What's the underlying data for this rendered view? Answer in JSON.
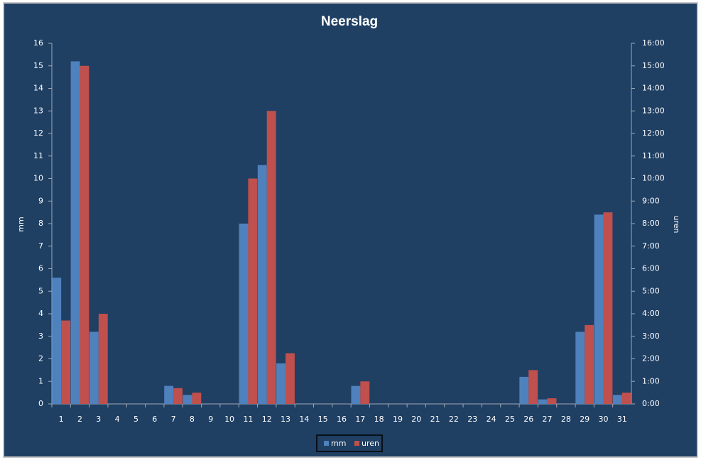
{
  "chart_data": {
    "type": "bar",
    "title": "Neerslag",
    "y_label": "mm",
    "y2_label": "uren",
    "categories": [
      "1",
      "2",
      "3",
      "4",
      "5",
      "6",
      "7",
      "8",
      "9",
      "10",
      "11",
      "12",
      "13",
      "14",
      "15",
      "16",
      "17",
      "18",
      "19",
      "20",
      "21",
      "22",
      "23",
      "24",
      "25",
      "26",
      "27",
      "28",
      "29",
      "30",
      "31"
    ],
    "series": [
      {
        "name": "mm",
        "color": "#4f81bd",
        "values": [
          5.6,
          15.2,
          3.2,
          0,
          0,
          0,
          0.8,
          0.4,
          0,
          0,
          8.0,
          10.6,
          1.8,
          0,
          0,
          0,
          0.8,
          0,
          0,
          0,
          0,
          0,
          0,
          0,
          0,
          1.2,
          0.2,
          0,
          3.2,
          8.4,
          0.4
        ]
      },
      {
        "name": "uren",
        "color": "#c0504d",
        "axis": "y2",
        "values": [
          3.7,
          15.0,
          4.0,
          0,
          0,
          0,
          0.7,
          0.5,
          0,
          0,
          10.0,
          13.0,
          2.25,
          0,
          0,
          0,
          1.0,
          0,
          0,
          0,
          0,
          0,
          0,
          0,
          0,
          1.5,
          0.25,
          0,
          3.5,
          8.5,
          0.5
        ]
      }
    ],
    "ylim": [
      0,
      16
    ],
    "yticks": [
      0,
      1,
      2,
      3,
      4,
      5,
      6,
      7,
      8,
      9,
      10,
      11,
      12,
      13,
      14,
      15,
      16
    ],
    "y2lim": [
      0,
      16
    ],
    "y2ticks": [
      {
        "value": 0,
        "label": "0:00"
      },
      {
        "value": 1,
        "label": "1:00"
      },
      {
        "value": 2,
        "label": "2:00"
      },
      {
        "value": 3,
        "label": "3:00"
      },
      {
        "value": 4,
        "label": "4:00"
      },
      {
        "value": 5,
        "label": "5:00"
      },
      {
        "value": 6,
        "label": "6:00"
      },
      {
        "value": 7,
        "label": "7:00"
      },
      {
        "value": 8,
        "label": "8:00"
      },
      {
        "value": 9,
        "label": "9:00"
      },
      {
        "value": 10,
        "label": "10:00"
      },
      {
        "value": 11,
        "label": "11:00"
      },
      {
        "value": 12,
        "label": "12:00"
      },
      {
        "value": 13,
        "label": "13:00"
      },
      {
        "value": 14,
        "label": "14:00"
      },
      {
        "value": 15,
        "label": "15:00"
      },
      {
        "value": 16,
        "label": "16:00"
      }
    ],
    "grid": false,
    "legend": "bottom"
  }
}
